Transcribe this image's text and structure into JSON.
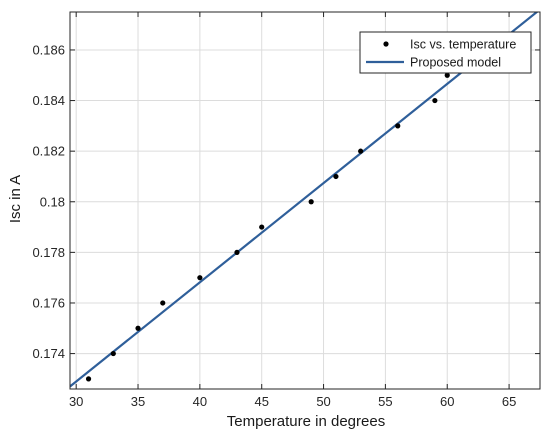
{
  "chart_data": {
    "type": "scatter",
    "xlabel": "Temperature in degrees",
    "ylabel": "Isc in A",
    "xlim": [
      29.5,
      67.5
    ],
    "ylim": [
      0.1726,
      0.1875
    ],
    "x_ticks": [
      30,
      35,
      40,
      45,
      50,
      55,
      60,
      65
    ],
    "x_tick_labels": [
      "30",
      "35",
      "40",
      "45",
      "50",
      "55",
      "60",
      "65"
    ],
    "y_ticks": [
      0.174,
      0.176,
      0.178,
      0.18,
      0.182,
      0.184,
      0.186
    ],
    "y_tick_labels": [
      "0.174",
      "0.176",
      "0.178",
      "0.18",
      "0.182",
      "0.184",
      "0.186"
    ],
    "grid": true,
    "legend_position": "top-right",
    "series": [
      {
        "name": "Isc vs. temperature",
        "kind": "scatter",
        "color": "#000000",
        "points": [
          {
            "x": 31,
            "y": 0.173
          },
          {
            "x": 33,
            "y": 0.174
          },
          {
            "x": 35,
            "y": 0.175
          },
          {
            "x": 37,
            "y": 0.176
          },
          {
            "x": 40,
            "y": 0.177
          },
          {
            "x": 43,
            "y": 0.178
          },
          {
            "x": 45,
            "y": 0.179
          },
          {
            "x": 49,
            "y": 0.18
          },
          {
            "x": 51,
            "y": 0.181
          },
          {
            "x": 53,
            "y": 0.182
          },
          {
            "x": 56,
            "y": 0.183
          },
          {
            "x": 59,
            "y": 0.184
          },
          {
            "x": 60,
            "y": 0.185
          }
        ]
      },
      {
        "name": "Proposed model",
        "kind": "line",
        "color": "#2f5f9a",
        "points": [
          {
            "x": 29.5,
            "y": 0.1727
          },
          {
            "x": 67.5,
            "y": 0.1876
          }
        ]
      }
    ]
  }
}
